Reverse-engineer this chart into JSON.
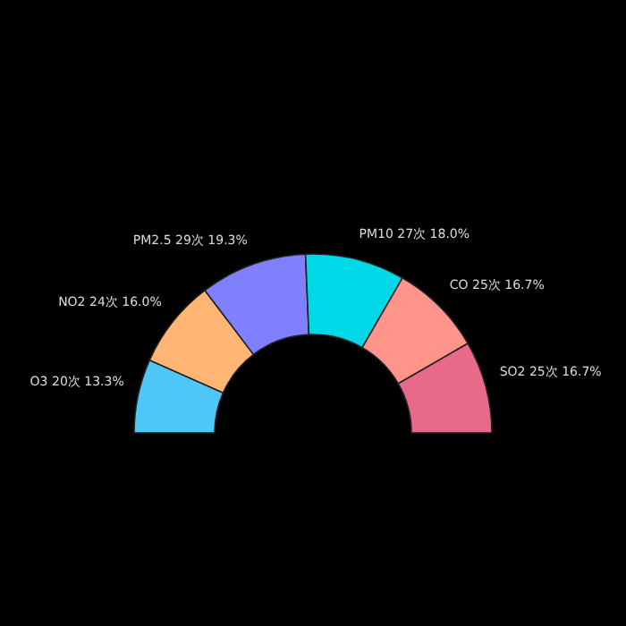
{
  "chart_data": {
    "type": "donut",
    "categories": [
      "O3",
      "NO2",
      "PM2.5",
      "PM10",
      "CO",
      "SO2"
    ],
    "values": [
      20,
      24,
      29,
      27,
      25,
      25
    ],
    "value_labels": [
      "20次 13.3%",
      "24次 16.0%",
      "29次 19.3%",
      "27次 18.0%",
      "25次 16.7%",
      "25次 16.7%"
    ],
    "colors": [
      "#4fc8f8",
      "#ffb574",
      "#8080ff",
      "#00d8e8",
      "#ff948a",
      "#e8698a"
    ]
  }
}
